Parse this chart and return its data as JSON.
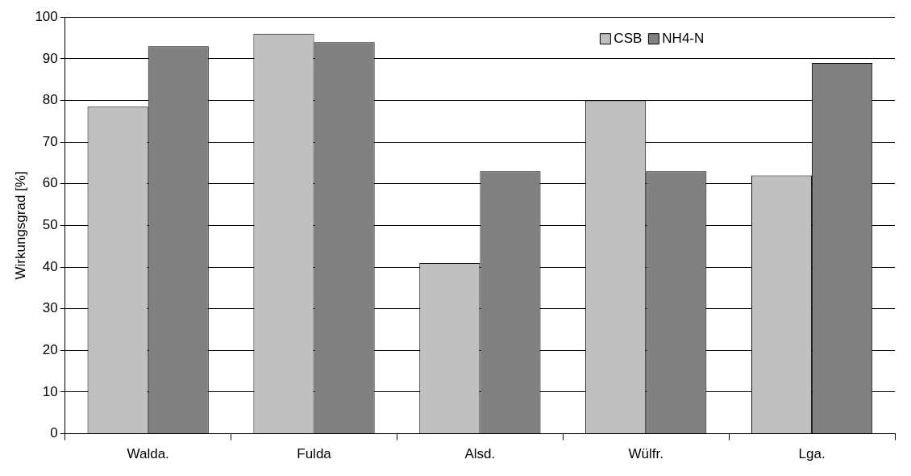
{
  "chart_data": {
    "type": "bar",
    "ylabel": "Wirkungsgrad [%]",
    "categories": [
      "Walda.",
      "Fulda",
      "Alsd.",
      "Wülfr.",
      "Lga."
    ],
    "series": [
      {
        "name": "CSB",
        "color": "#c0c0c0",
        "values": [
          78.5,
          96,
          41,
          80,
          62
        ]
      },
      {
        "name": "NH4-N",
        "color": "#808080",
        "values": [
          93,
          94,
          63,
          63,
          89
        ]
      }
    ],
    "ylim": [
      0,
      100
    ],
    "yticks": [
      0,
      10,
      20,
      30,
      40,
      50,
      60,
      70,
      80,
      90,
      100
    ],
    "grid": "y",
    "legend": "top right"
  }
}
